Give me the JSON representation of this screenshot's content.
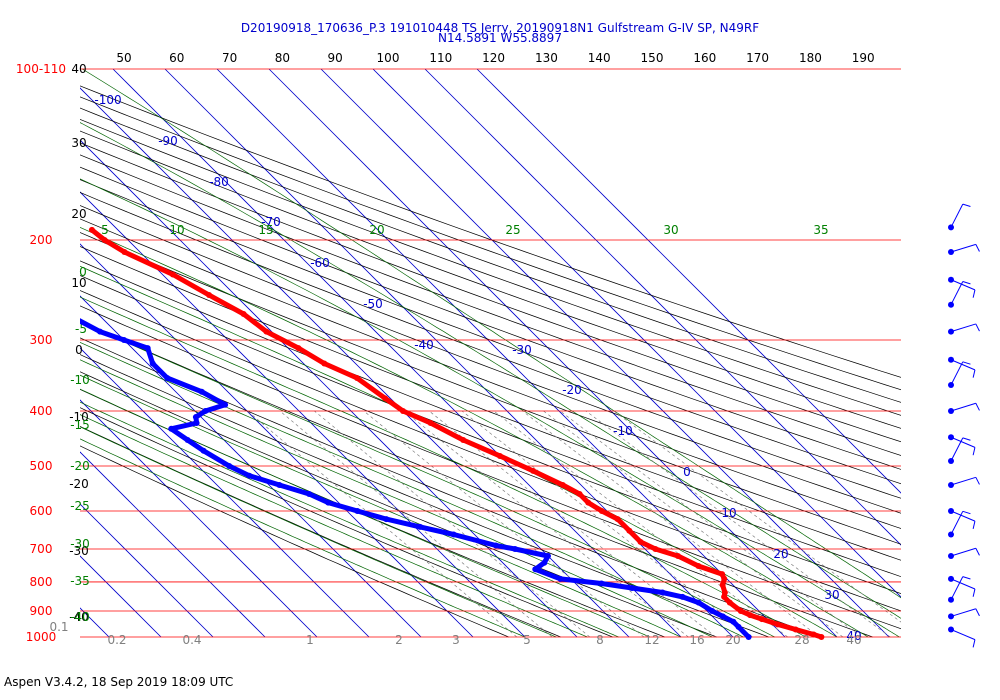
{
  "header": {
    "title_line1": "D20190918_170636_P.3 191010448 TS Jerry, 20190918N1 Gulfstream G-IV SP, N49RF",
    "title_line2": "N14.5891 W55.8897"
  },
  "footer": {
    "text": "Aspen V3.4.2, 18 Sep 2019  18:09 UTC"
  },
  "chart_data": {
    "type": "line",
    "title": "D20190918_170636_P.3 191010448 TS Jerry, 20190918N1 Gulfstream G-IV SP, N49RF",
    "subtitle": "N14.5891 W55.8897",
    "pressure_ticks": [
      {
        "value": 100,
        "label": "100-110"
      },
      {
        "value": 200,
        "label": "200"
      },
      {
        "value": 300,
        "label": "300"
      },
      {
        "value": 400,
        "label": "400"
      },
      {
        "value": 500,
        "label": "500"
      },
      {
        "value": 600,
        "label": "600"
      },
      {
        "value": 700,
        "label": "700"
      },
      {
        "value": 800,
        "label": "800"
      },
      {
        "value": 900,
        "label": "900"
      },
      {
        "value": 1000,
        "label": "1000"
      }
    ],
    "pressure_lim": [
      100,
      1000
    ],
    "top_axis_ticks": [
      "50",
      "60",
      "70",
      "80",
      "90",
      "100",
      "110",
      "120",
      "130",
      "140",
      "150",
      "160",
      "170",
      "180",
      "190"
    ],
    "left_temp_labels": [
      "40",
      "30",
      "20",
      "10",
      "0",
      "-10",
      "-20",
      "-30",
      "-40"
    ],
    "isotherm_labels": [
      "-100",
      "-90",
      "-80",
      "-70",
      "-60",
      "-50",
      "-40",
      "-30",
      "-20",
      "-10",
      "0",
      "10",
      "20",
      "30",
      "40"
    ],
    "theta_e_labels": [
      "5",
      "10",
      "15",
      "20",
      "25",
      "30",
      "35",
      "0",
      "-5",
      "-10",
      "-15",
      "-20",
      "-25",
      "-30",
      "-35",
      "-40"
    ],
    "mixing_ratio_labels": [
      "0.1",
      "0.2",
      "0.4",
      "1",
      "2",
      "3",
      "5",
      "8",
      "12",
      "16",
      "20",
      "28",
      "40"
    ],
    "series": [
      {
        "color": "#ff0000",
        "points": [
          [
            192,
            -45
          ],
          [
            200,
            -44.5
          ],
          [
            210,
            -43
          ],
          [
            230,
            -38
          ],
          [
            250,
            -35
          ],
          [
            270,
            -32
          ],
          [
            290,
            -31
          ],
          [
            310,
            -28
          ],
          [
            330,
            -26
          ],
          [
            350,
            -22.5
          ],
          [
            380,
            -21
          ],
          [
            400,
            -20
          ],
          [
            420,
            -17
          ],
          [
            450,
            -14
          ],
          [
            480,
            -10
          ],
          [
            510,
            -6.5
          ],
          [
            540,
            -3.5
          ],
          [
            560,
            -2
          ],
          [
            580,
            -2
          ],
          [
            600,
            -1
          ],
          [
            620,
            0.5
          ],
          [
            650,
            0.5
          ],
          [
            680,
            0.5
          ],
          [
            700,
            2
          ],
          [
            720,
            5
          ],
          [
            750,
            7
          ],
          [
            775,
            10
          ],
          [
            790,
            9.5
          ],
          [
            810,
            8
          ],
          [
            835,
            7
          ],
          [
            850,
            6
          ],
          [
            870,
            6
          ],
          [
            900,
            6.5
          ],
          [
            915,
            7.5
          ],
          [
            930,
            9
          ],
          [
            950,
            11
          ],
          [
            970,
            13.5
          ],
          [
            990,
            16
          ],
          [
            1000,
            17
          ]
        ],
        "isolated_point": [
          170,
          -54
        ]
      },
      {
        "color": "#0000ff",
        "points": [
          [
            200,
            -58
          ],
          [
            210,
            -58
          ],
          [
            230,
            -66
          ],
          [
            250,
            -67
          ],
          [
            270,
            -66
          ],
          [
            290,
            -63
          ],
          [
            300,
            -60
          ],
          [
            310,
            -57
          ],
          [
            330,
            -59
          ],
          [
            350,
            -59
          ],
          [
            370,
            -55
          ],
          [
            390,
            -53
          ],
          [
            400,
            -58
          ],
          [
            410,
            -61
          ],
          [
            420,
            -62
          ],
          [
            430,
            -68
          ],
          [
            450,
            -67
          ],
          [
            470,
            -66
          ],
          [
            500,
            -64
          ],
          [
            520,
            -62
          ],
          [
            540,
            -58
          ],
          [
            560,
            -54
          ],
          [
            580,
            -52
          ],
          [
            600,
            -48
          ],
          [
            620,
            -44
          ],
          [
            640,
            -39
          ],
          [
            660,
            -34
          ],
          [
            690,
            -28
          ],
          [
            700,
            -25
          ],
          [
            720,
            -20
          ],
          [
            740,
            -22
          ],
          [
            760,
            -25
          ],
          [
            790,
            -22
          ],
          [
            805,
            -15
          ],
          [
            820,
            -10
          ],
          [
            835,
            -5
          ],
          [
            850,
            -2
          ],
          [
            870,
            0
          ],
          [
            900,
            1
          ],
          [
            920,
            2
          ],
          [
            940,
            3
          ],
          [
            960,
            3
          ],
          [
            1000,
            3
          ]
        ]
      }
    ],
    "wind_barbs": [
      {
        "pressure": 190
      },
      {
        "pressure": 210
      },
      {
        "pressure": 235
      },
      {
        "pressure": 260
      },
      {
        "pressure": 290
      },
      {
        "pressure": 325
      },
      {
        "pressure": 360
      },
      {
        "pressure": 400
      },
      {
        "pressure": 445
      },
      {
        "pressure": 490
      },
      {
        "pressure": 540
      },
      {
        "pressure": 600
      },
      {
        "pressure": 660
      },
      {
        "pressure": 720
      },
      {
        "pressure": 790
      },
      {
        "pressure": 860
      },
      {
        "pressure": 920
      },
      {
        "pressure": 970
      }
    ]
  },
  "colors": {
    "isobar": "#ff0000",
    "temperature": "#ff0000",
    "dewpoint": "#0000ff",
    "isotherm": "#0000cc",
    "dry_adiabat": "#000000",
    "moist_adiabat": "#006400",
    "mixing_ratio": "#808080",
    "pressure_label": "#ff0000",
    "top_label": "#000000",
    "theta_label": "#008000"
  }
}
